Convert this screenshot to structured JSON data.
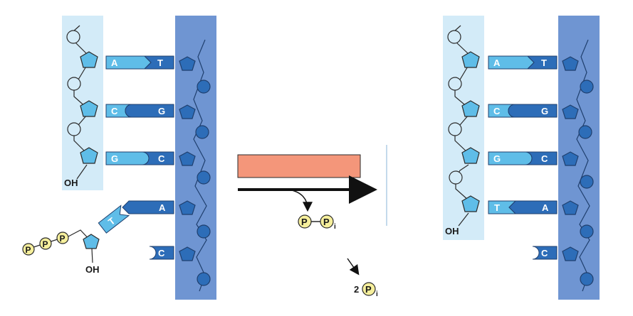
{
  "left_panel": {
    "template_bases": [
      "T",
      "G",
      "C",
      "A",
      "C"
    ],
    "new_bases": [
      "A",
      "C",
      "G"
    ],
    "incoming_base": "T",
    "oh_label": "OH",
    "incoming_oh_label": "OH",
    "phosphate_symbol": "P"
  },
  "middle": {
    "pyrophosphate": {
      "p1": "P",
      "p2": "P",
      "subscript": "i"
    },
    "hydrolysis": {
      "coefficient": "2",
      "symbol": "P",
      "subscript": "i"
    }
  },
  "right_panel": {
    "template_bases": [
      "T",
      "G",
      "C",
      "A",
      "C"
    ],
    "new_bases": [
      "A",
      "C",
      "G",
      "T"
    ],
    "oh_label": "OH"
  },
  "colors": {
    "template_strand": "#6f95d2",
    "new_strand": "#d3ebf8",
    "dark_blue": "#2d6db8",
    "light_blue": "#5fbde8",
    "enzyme_box": "#f4967a",
    "phosphate": "#f6ef9c"
  }
}
